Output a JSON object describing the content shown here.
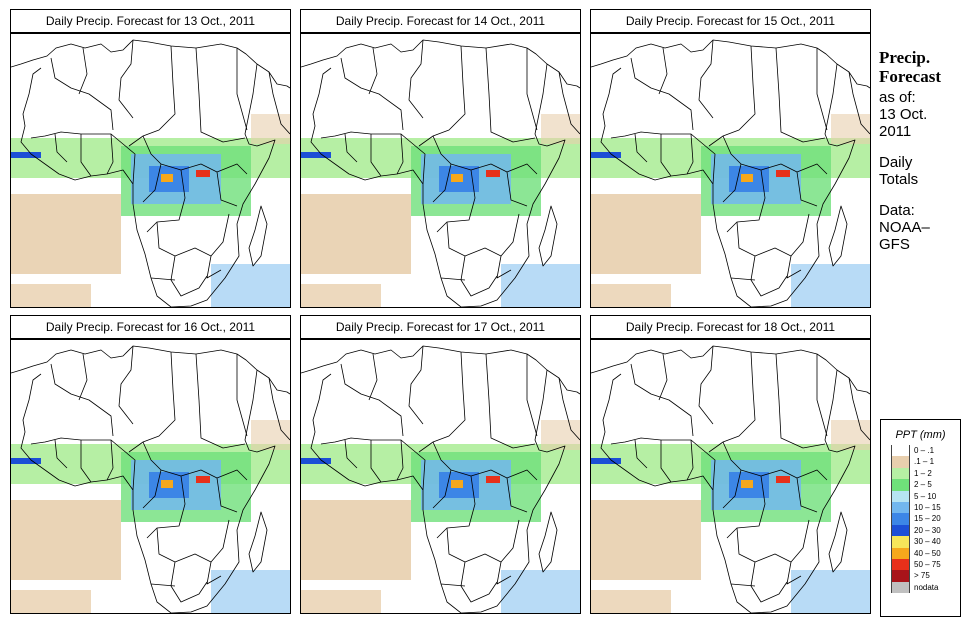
{
  "panels": [
    {
      "title": "Daily Precip. Forecast for  13 Oct., 2011"
    },
    {
      "title": "Daily Precip. Forecast for  14 Oct., 2011"
    },
    {
      "title": "Daily Precip. Forecast for  15 Oct., 2011"
    },
    {
      "title": "Daily Precip. Forecast for  16 Oct., 2011"
    },
    {
      "title": "Daily Precip. Forecast for  17 Oct., 2011"
    },
    {
      "title": "Daily Precip. Forecast for  18 Oct., 2011"
    }
  ],
  "info": {
    "heading1": "Precip.",
    "heading2": "Forecast",
    "as_of": "as of:",
    "date1": "13 Oct.",
    "date2": "2011",
    "daily1": "Daily",
    "daily2": "Totals",
    "data1": "Data:",
    "data2": "NOAA–",
    "data3": "GFS"
  },
  "legend": {
    "title": "PPT (mm)",
    "items": [
      {
        "label": "0 – .1",
        "color": "#ffffff"
      },
      {
        "label": ".1 – 1",
        "color": "#e8cfae"
      },
      {
        "label": "1 – 2",
        "color": "#b6efa4"
      },
      {
        "label": "2 – 5",
        "color": "#6fe07a"
      },
      {
        "label": "5 – 10",
        "color": "#b6e4f2"
      },
      {
        "label": "10 – 15",
        "color": "#72b7ee"
      },
      {
        "label": "15 – 20",
        "color": "#3c86e6"
      },
      {
        "label": "20 – 30",
        "color": "#1c4fd6"
      },
      {
        "label": "30 – 40",
        "color": "#f6e65a"
      },
      {
        "label": "40 – 50",
        "color": "#f6a81c"
      },
      {
        "label": "50 – 75",
        "color": "#e8301a"
      },
      {
        "label": "> 75",
        "color": "#a8141a"
      },
      {
        "label": "nodata",
        "color": "#c0c0c0"
      }
    ]
  }
}
